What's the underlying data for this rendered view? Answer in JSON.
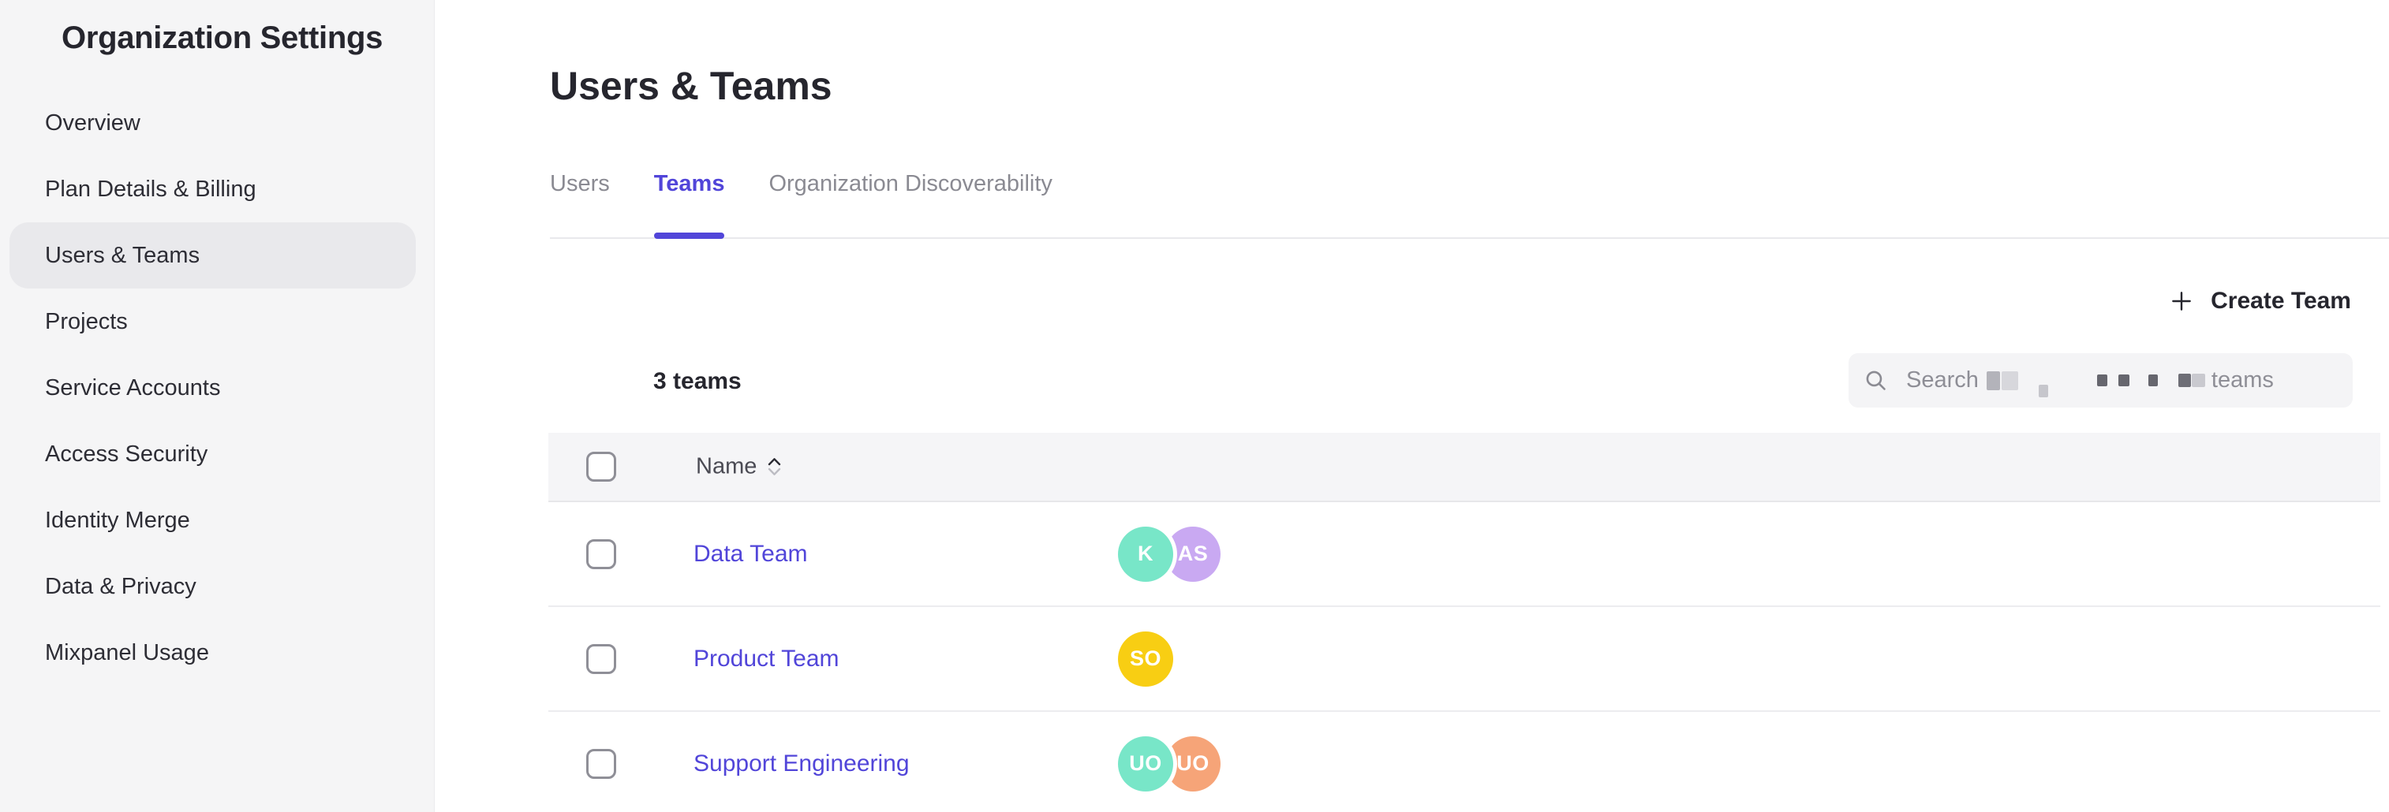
{
  "sidebar": {
    "title": "Organization Settings",
    "items": [
      {
        "label": "Overview",
        "selected": false
      },
      {
        "label": "Plan Details & Billing",
        "selected": false
      },
      {
        "label": "Users & Teams",
        "selected": true
      },
      {
        "label": "Projects",
        "selected": false
      },
      {
        "label": "Service Accounts",
        "selected": false
      },
      {
        "label": "Access Security",
        "selected": false
      },
      {
        "label": "Identity Merge",
        "selected": false
      },
      {
        "label": "Data & Privacy",
        "selected": false
      },
      {
        "label": "Mixpanel Usage",
        "selected": false
      }
    ]
  },
  "main": {
    "title": "Users & Teams",
    "tabs": [
      {
        "label": "Users",
        "active": false
      },
      {
        "label": "Teams",
        "active": true
      },
      {
        "label": "Organization Discoverability",
        "active": false
      }
    ],
    "create_team_label": "Create Team",
    "teams_count": "3 teams",
    "search": {
      "prefix": "Search",
      "suffix": "teams",
      "redacted": true
    },
    "table": {
      "columns": [
        {
          "label": "Name",
          "sortable": true
        }
      ],
      "rows": [
        {
          "name": "Data Team",
          "members": [
            {
              "initials": "K",
              "color": "#78e6c8"
            },
            {
              "initials": "AS",
              "color": "#c9a9f2"
            }
          ]
        },
        {
          "name": "Product Team",
          "members": [
            {
              "initials": "SO",
              "color": "#f8ce13"
            }
          ]
        },
        {
          "name": "Support Engineering",
          "members": [
            {
              "initials": "UO",
              "color": "#78e6c8"
            },
            {
              "initials": "UO",
              "color": "#f6a478"
            }
          ]
        }
      ]
    }
  },
  "colors": {
    "accent_purple": "#5145d9",
    "link": "#5145d9",
    "sidebar_bg": "#f5f5f6",
    "selected_pill": "#e9e9ec",
    "table_header_bg": "#f5f5f7",
    "inactive_tab": "#8a8a92",
    "avatar_teal": "#78e6c8",
    "avatar_lavender": "#c9a9f2",
    "avatar_yellow": "#f8ce13",
    "avatar_salmon": "#f6a478"
  }
}
